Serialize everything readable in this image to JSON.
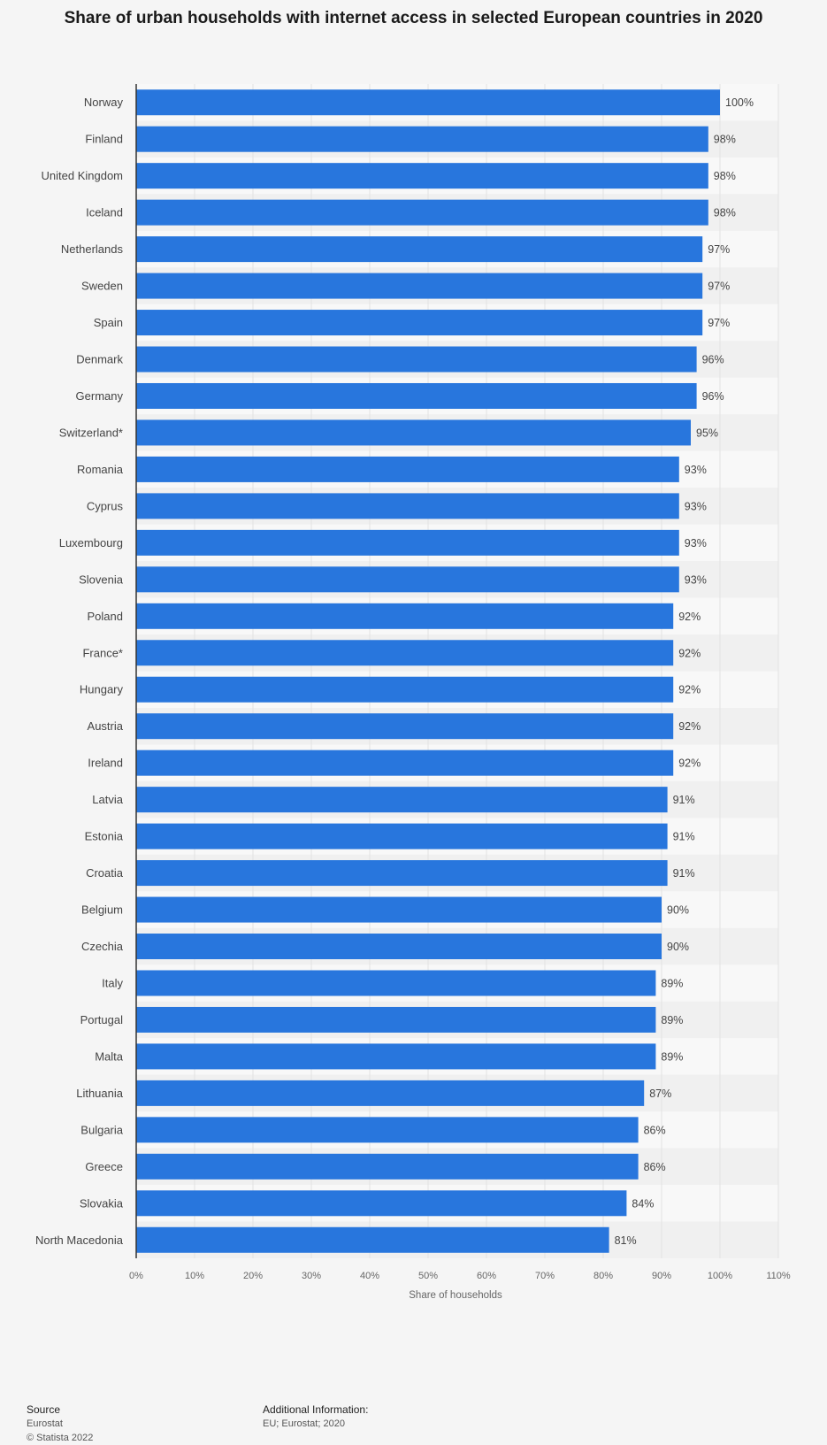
{
  "title": "Share of urban households with internet access in selected European countries in 2020",
  "chart_data": {
    "type": "bar",
    "orientation": "horizontal",
    "title": "Share of urban households with internet access in selected European countries in 2020",
    "xlabel": "Share of households",
    "ylabel": "",
    "xlim": [
      0,
      110
    ],
    "x_ticks": [
      "0%",
      "10%",
      "20%",
      "30%",
      "40%",
      "50%",
      "60%",
      "70%",
      "80%",
      "90%",
      "100%",
      "110%"
    ],
    "grid": true,
    "bar_color": "#2876dd",
    "value_suffix": "%",
    "categories": [
      "Norway",
      "Finland",
      "United Kingdom",
      "Iceland",
      "Netherlands",
      "Sweden",
      "Spain",
      "Denmark",
      "Germany",
      "Switzerland*",
      "Romania",
      "Cyprus",
      "Luxembourg",
      "Slovenia",
      "Poland",
      "France*",
      "Hungary",
      "Austria",
      "Ireland",
      "Latvia",
      "Estonia",
      "Croatia",
      "Belgium",
      "Czechia",
      "Italy",
      "Portugal",
      "Malta",
      "Lithuania",
      "Bulgaria",
      "Greece",
      "Slovakia",
      "North Macedonia"
    ],
    "values": [
      100,
      98,
      98,
      98,
      97,
      97,
      97,
      96,
      96,
      95,
      93,
      93,
      93,
      93,
      92,
      92,
      92,
      92,
      92,
      91,
      91,
      91,
      90,
      90,
      89,
      89,
      89,
      87,
      86,
      86,
      84,
      81
    ]
  },
  "footer": {
    "source_heading": "Source",
    "source": "Eurostat",
    "copyright": "© Statista 2022",
    "info_heading": "Additional Information:",
    "info": "EU; Eurostat; 2020"
  }
}
